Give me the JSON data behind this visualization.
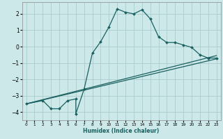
{
  "xlabel": "Humidex (Indice chaleur)",
  "bg_color": "#cce8e8",
  "grid_color": "#aacccc",
  "line_color": "#1a6060",
  "xlim": [
    -0.5,
    23.5
  ],
  "ylim": [
    -4.5,
    2.7
  ],
  "xticks": [
    0,
    1,
    2,
    3,
    4,
    5,
    6,
    7,
    8,
    9,
    10,
    11,
    12,
    13,
    14,
    15,
    16,
    17,
    18,
    19,
    20,
    21,
    22,
    23
  ],
  "yticks": [
    -4,
    -3,
    -2,
    -1,
    0,
    1,
    2
  ],
  "series1_x": [
    0,
    2,
    3,
    4,
    5,
    6,
    6,
    7,
    8,
    9,
    10,
    11,
    12,
    13,
    14,
    15,
    16,
    17,
    18,
    19,
    20,
    21,
    22,
    23
  ],
  "series1_y": [
    -3.5,
    -3.3,
    -3.8,
    -3.8,
    -3.3,
    -3.2,
    -4.1,
    -2.6,
    -0.4,
    0.3,
    1.2,
    2.3,
    2.1,
    2.0,
    2.25,
    1.7,
    0.6,
    0.25,
    0.25,
    0.1,
    -0.05,
    -0.5,
    -0.7,
    -0.7
  ],
  "series2_x": [
    0,
    23
  ],
  "series2_y": [
    -3.5,
    -0.55
  ],
  "series3_x": [
    0,
    23
  ],
  "series3_y": [
    -3.5,
    -0.75
  ]
}
